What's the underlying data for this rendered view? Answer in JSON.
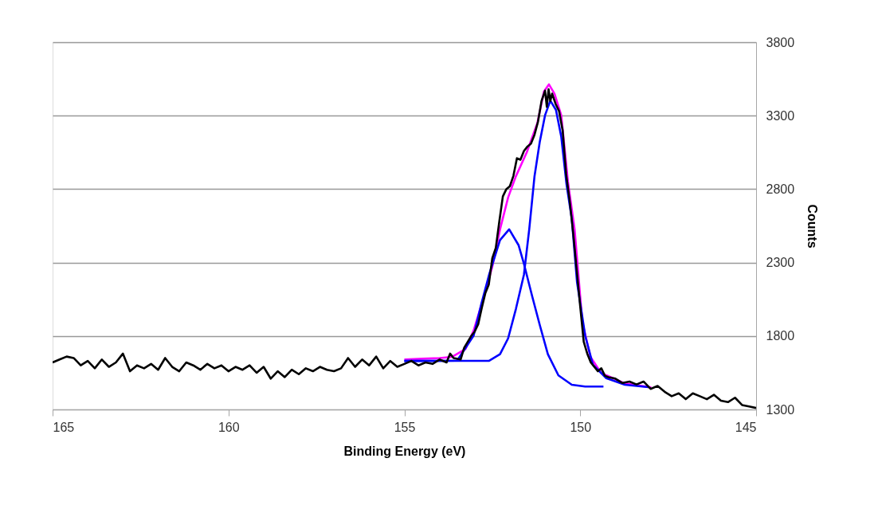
{
  "chart_data": {
    "type": "line",
    "xlabel": "Binding Energy (eV)",
    "ylabel": "Counts",
    "xlim": [
      165,
      145
    ],
    "xticks": [
      165,
      160,
      155,
      150,
      145
    ],
    "ylim": [
      1300,
      3800
    ],
    "yticks": [
      1300,
      1800,
      2300,
      2800,
      3300,
      3800
    ],
    "grid": "y",
    "legend": false,
    "marker": "none",
    "line_style": "solid",
    "series": [
      {
        "color": "#ff00ff",
        "x": [
          155.0,
          154.5,
          154.0,
          153.64,
          153.26,
          153.03,
          152.73,
          152.5,
          152.28,
          152.05,
          151.83,
          151.52,
          151.22,
          151.03,
          150.89,
          150.73,
          150.54,
          150.35,
          150.16,
          149.94,
          149.71,
          149.41,
          148.73,
          147.98
        ],
        "values": [
          1640,
          1645,
          1650,
          1658,
          1712,
          1838,
          2074,
          2272,
          2526,
          2743,
          2887,
          3050,
          3248,
          3465,
          3513,
          3448,
          3303,
          2851,
          2526,
          1893,
          1658,
          1549,
          1477,
          1450
        ]
      },
      {
        "color": "#0000ff",
        "x": [
          155.0,
          153.5,
          152.59,
          152.28,
          152.05,
          151.83,
          151.6,
          151.45,
          151.3,
          151.15,
          151.0,
          150.85,
          150.69,
          150.54,
          150.39,
          150.24,
          150.09,
          149.86,
          149.64,
          149.26,
          148.73,
          148.06
        ],
        "values": [
          1630,
          1631,
          1631,
          1676,
          1784,
          1983,
          2218,
          2526,
          2887,
          3122,
          3303,
          3402,
          3339,
          3158,
          2833,
          2598,
          2164,
          1803,
          1604,
          1513,
          1468,
          1452
        ]
      },
      {
        "color": "#0000ff",
        "x": [
          155.0,
          153.5,
          153.03,
          152.81,
          152.59,
          152.28,
          152.02,
          151.75,
          151.6,
          151.37,
          151.15,
          150.92,
          150.62,
          150.24,
          149.86,
          149.34
        ],
        "values": [
          1630,
          1632,
          1803,
          2020,
          2218,
          2453,
          2526,
          2417,
          2291,
          2074,
          1875,
          1676,
          1532,
          1468,
          1456,
          1456
        ]
      },
      {
        "color": "#000000",
        "x": [
          165.0,
          164.8,
          164.6,
          164.4,
          164.2,
          164.0,
          163.8,
          163.6,
          163.4,
          163.2,
          163.0,
          162.8,
          162.6,
          162.4,
          162.2,
          162.0,
          161.8,
          161.6,
          161.4,
          161.2,
          161.0,
          160.8,
          160.6,
          160.4,
          160.2,
          160.0,
          159.8,
          159.6,
          159.4,
          159.2,
          159.0,
          158.8,
          158.6,
          158.4,
          158.2,
          158.0,
          157.8,
          157.6,
          157.4,
          157.2,
          157.0,
          156.8,
          156.6,
          156.4,
          156.2,
          156.0,
          155.8,
          155.6,
          155.4,
          155.2,
          155.0,
          154.8,
          154.6,
          154.4,
          154.2,
          154.0,
          153.8,
          153.7,
          153.6,
          153.4,
          153.3,
          153.1,
          153.0,
          152.9,
          152.8,
          152.7,
          152.6,
          152.5,
          152.4,
          152.3,
          152.2,
          152.1,
          152.0,
          151.9,
          151.8,
          151.7,
          151.6,
          151.5,
          151.4,
          151.3,
          151.2,
          151.1,
          151.0,
          150.95,
          150.9,
          150.85,
          150.8,
          150.7,
          150.6,
          150.5,
          150.4,
          150.3,
          150.2,
          150.1,
          150.0,
          149.9,
          149.8,
          149.7,
          149.6,
          149.5,
          149.4,
          149.3,
          149.2,
          149.0,
          148.8,
          148.6,
          148.4,
          148.2,
          148.0,
          147.8,
          147.6,
          147.4,
          147.2,
          147.0,
          146.8,
          146.6,
          146.4,
          146.2,
          146.0,
          145.8,
          145.6,
          145.4,
          145.2,
          145.0
        ],
        "values": [
          1620,
          1640,
          1660,
          1650,
          1600,
          1630,
          1580,
          1640,
          1590,
          1620,
          1680,
          1560,
          1600,
          1580,
          1610,
          1570,
          1650,
          1590,
          1560,
          1620,
          1600,
          1570,
          1610,
          1580,
          1600,
          1560,
          1590,
          1570,
          1600,
          1550,
          1590,
          1510,
          1560,
          1520,
          1570,
          1540,
          1580,
          1560,
          1590,
          1570,
          1560,
          1580,
          1650,
          1590,
          1640,
          1600,
          1660,
          1580,
          1630,
          1590,
          1610,
          1630,
          1600,
          1620,
          1610,
          1640,
          1620,
          1680,
          1650,
          1640,
          1720,
          1800,
          1830,
          1880,
          1990,
          2090,
          2150,
          2330,
          2400,
          2580,
          2750,
          2800,
          2820,
          2890,
          3010,
          3000,
          3060,
          3090,
          3110,
          3170,
          3260,
          3400,
          3470,
          3360,
          3480,
          3400,
          3450,
          3380,
          3330,
          3200,
          2900,
          2720,
          2500,
          2250,
          2000,
          1760,
          1680,
          1620,
          1590,
          1560,
          1580,
          1530,
          1520,
          1510,
          1480,
          1490,
          1470,
          1490,
          1440,
          1460,
          1420,
          1390,
          1410,
          1370,
          1410,
          1390,
          1370,
          1400,
          1360,
          1350,
          1380,
          1330,
          1320,
          1310
        ]
      }
    ]
  }
}
